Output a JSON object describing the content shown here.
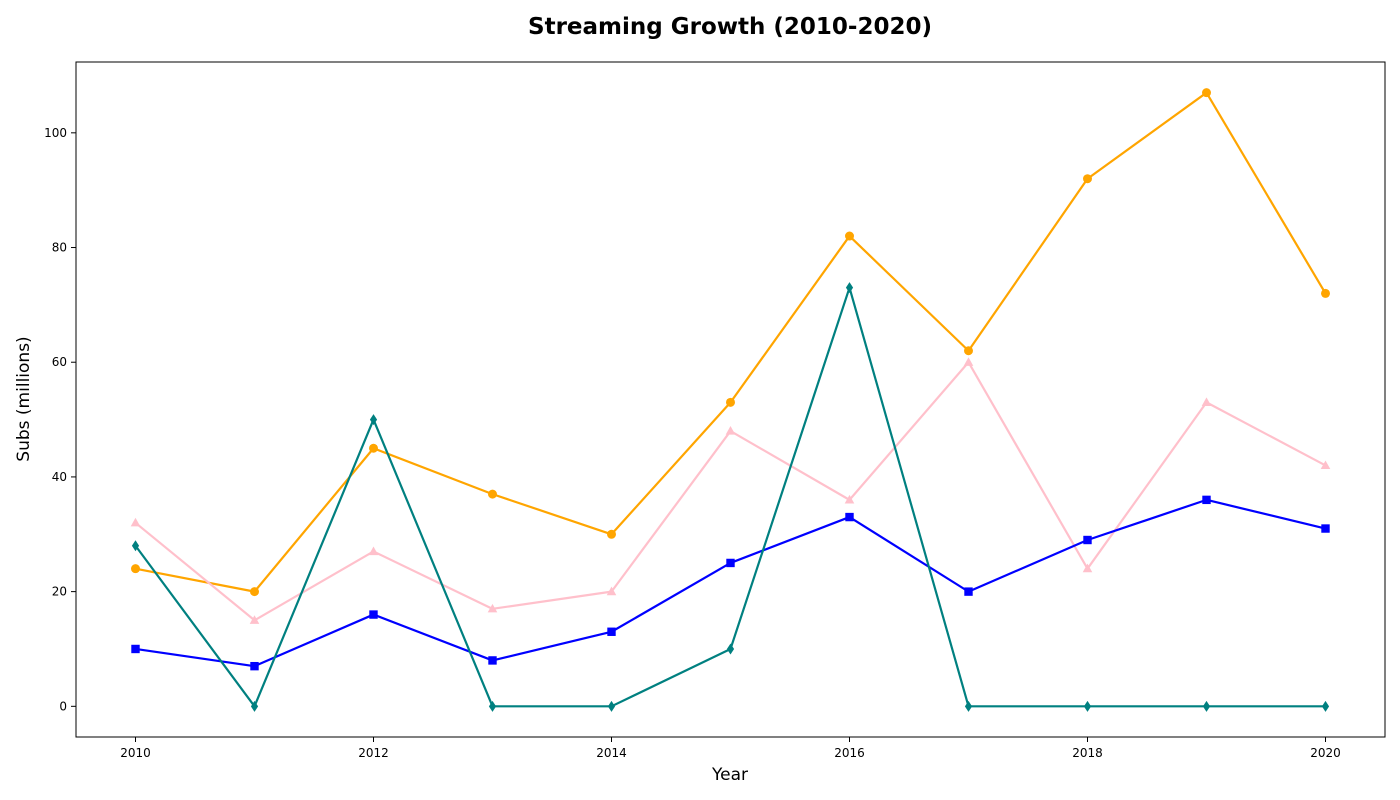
{
  "chart_data": {
    "type": "line",
    "title": "Streaming Growth (2010-2020)",
    "xlabel": "Year",
    "ylabel": "Subs (millions)",
    "x": [
      2010,
      2011,
      2012,
      2013,
      2014,
      2015,
      2016,
      2017,
      2018,
      2019,
      2020
    ],
    "xlim": [
      2009.5,
      2020.5
    ],
    "ylim": [
      -5.35,
      112.35
    ],
    "xticks": [
      2010,
      2012,
      2014,
      2016,
      2018,
      2020
    ],
    "yticks": [
      0,
      20,
      40,
      60,
      80,
      100
    ],
    "grid": false,
    "legend": "none",
    "series": [
      {
        "color": "#ffa500",
        "marker": "circle",
        "values": [
          24,
          20,
          45,
          37,
          30,
          53,
          82,
          62,
          92,
          107,
          72
        ]
      },
      {
        "color": "#ffc0cb",
        "marker": "triangle",
        "values": [
          32,
          15,
          27,
          17,
          20,
          48,
          36,
          60,
          24,
          53,
          42
        ]
      },
      {
        "color": "#0000ff",
        "marker": "square",
        "values": [
          10,
          7,
          16,
          8,
          13,
          25,
          33,
          20,
          29,
          36,
          31
        ]
      },
      {
        "color": "#008080",
        "marker": "diamond",
        "values": [
          28,
          0,
          50,
          0,
          0,
          10,
          73,
          0,
          0,
          0,
          0
        ]
      }
    ]
  }
}
